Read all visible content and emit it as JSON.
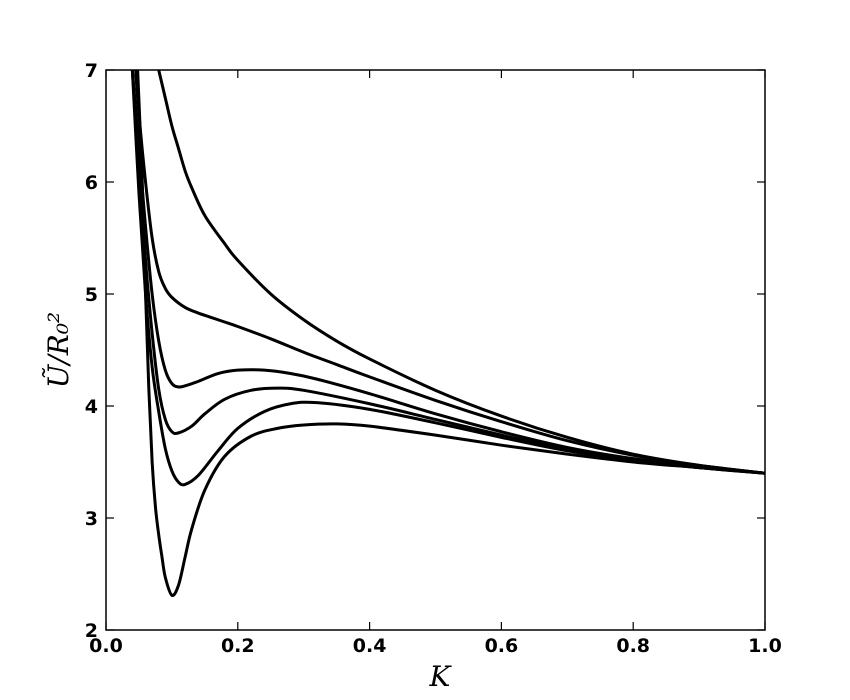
{
  "chart_data": {
    "type": "line",
    "title": "",
    "xlabel": "K",
    "ylabel": "Ũ/R₀²",
    "xlim": [
      0.0,
      1.0
    ],
    "ylim": [
      2,
      7
    ],
    "grid": false,
    "legend": "none",
    "line_color": "#000000",
    "x_ticks": [
      "0.0",
      "0.2",
      "0.4",
      "0.6",
      "0.8",
      "1.0"
    ],
    "y_ticks": [
      "2",
      "3",
      "4",
      "5",
      "6",
      "7"
    ],
    "series": [
      {
        "x": [
          0.048,
          0.055,
          0.06,
          0.065,
          0.07,
          0.075,
          0.08,
          0.085,
          0.09,
          0.1,
          0.11,
          0.12,
          0.13,
          0.15,
          0.18,
          0.22,
          0.26,
          0.3,
          0.35,
          0.4,
          0.5,
          0.6,
          0.7,
          0.8,
          0.9,
          1.0
        ],
        "y": [
          7.0,
          6.0,
          5.0,
          4.15,
          3.5,
          3.1,
          2.85,
          2.65,
          2.47,
          2.31,
          2.4,
          2.65,
          2.9,
          3.25,
          3.55,
          3.73,
          3.8,
          3.83,
          3.84,
          3.82,
          3.74,
          3.65,
          3.57,
          3.5,
          3.45,
          3.4
        ]
      },
      {
        "x": [
          0.04,
          0.05,
          0.06,
          0.07,
          0.08,
          0.09,
          0.1,
          0.11,
          0.12,
          0.14,
          0.17,
          0.2,
          0.24,
          0.28,
          0.32,
          0.4,
          0.5,
          0.6,
          0.7,
          0.8,
          0.9,
          1.0
        ],
        "y": [
          7.0,
          5.9,
          5.0,
          4.35,
          3.95,
          3.62,
          3.42,
          3.32,
          3.3,
          3.38,
          3.6,
          3.8,
          3.95,
          4.02,
          4.03,
          3.97,
          3.85,
          3.72,
          3.6,
          3.51,
          3.45,
          3.4
        ]
      },
      {
        "x": [
          0.04,
          0.05,
          0.06,
          0.07,
          0.08,
          0.09,
          0.1,
          0.11,
          0.13,
          0.15,
          0.18,
          0.22,
          0.26,
          0.3,
          0.4,
          0.5,
          0.6,
          0.7,
          0.8,
          0.9,
          1.0
        ],
        "y": [
          7.0,
          6.1,
          5.3,
          4.65,
          4.15,
          3.88,
          3.77,
          3.76,
          3.82,
          3.93,
          4.06,
          4.14,
          4.16,
          4.14,
          4.02,
          3.88,
          3.74,
          3.61,
          3.52,
          3.45,
          3.4
        ]
      },
      {
        "x": [
          0.04,
          0.05,
          0.06,
          0.07,
          0.08,
          0.09,
          0.1,
          0.11,
          0.12,
          0.14,
          0.17,
          0.2,
          0.24,
          0.28,
          0.32,
          0.4,
          0.5,
          0.6,
          0.7,
          0.8,
          0.9,
          1.0
        ],
        "y": [
          7.0,
          6.3,
          5.6,
          5.0,
          4.58,
          4.32,
          4.2,
          4.17,
          4.18,
          4.22,
          4.29,
          4.32,
          4.32,
          4.29,
          4.24,
          4.11,
          3.93,
          3.77,
          3.63,
          3.53,
          3.46,
          3.4
        ]
      },
      {
        "x": [
          0.045,
          0.05,
          0.06,
          0.07,
          0.08,
          0.09,
          0.1,
          0.12,
          0.14,
          0.16,
          0.18,
          0.2,
          0.25,
          0.3,
          0.35,
          0.4,
          0.5,
          0.6,
          0.7,
          0.8,
          0.9,
          1.0
        ],
        "y": [
          7.0,
          6.6,
          6.0,
          5.5,
          5.2,
          5.05,
          4.97,
          4.88,
          4.83,
          4.79,
          4.75,
          4.71,
          4.6,
          4.48,
          4.37,
          4.26,
          4.05,
          3.86,
          3.69,
          3.56,
          3.47,
          3.4
        ]
      },
      {
        "x": [
          0.08,
          0.09,
          0.1,
          0.11,
          0.12,
          0.13,
          0.15,
          0.18,
          0.2,
          0.25,
          0.3,
          0.35,
          0.4,
          0.5,
          0.6,
          0.7,
          0.8,
          0.9,
          1.0
        ],
        "y": [
          7.0,
          6.75,
          6.5,
          6.3,
          6.1,
          5.95,
          5.7,
          5.45,
          5.3,
          5.0,
          4.77,
          4.58,
          4.42,
          4.14,
          3.91,
          3.72,
          3.57,
          3.47,
          3.4
        ]
      }
    ]
  }
}
